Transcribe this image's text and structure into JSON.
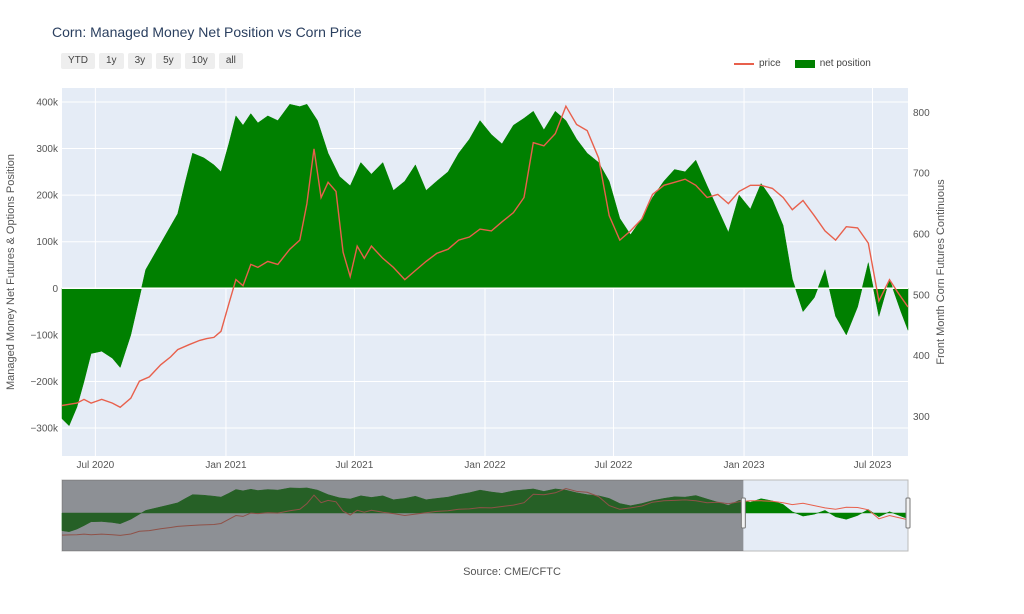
{
  "title": "Corn: Managed Money Net Position vs Corn Price",
  "range_buttons": [
    "YTD",
    "1y",
    "3y",
    "5y",
    "10y",
    "all"
  ],
  "legend": {
    "price": "price",
    "net": "net position"
  },
  "source": "Source: CME/CFTC",
  "colors": {
    "price": "#E8604C",
    "net": "#008000",
    "plot_bg": "#E5ECF6",
    "grid": "#ffffff"
  },
  "chart_data": {
    "type": "area",
    "title": "Corn: Managed Money Net Position vs Corn Price",
    "xlabel": "",
    "ylabel": "Managed Money Net Futures & Options Position",
    "y2label": "Front Month Corn Futures Continuous",
    "xlim": [
      "2020-05-15",
      "2023-08-20"
    ],
    "ylim": [
      -360000,
      430000
    ],
    "y2lim": [
      235,
      840
    ],
    "x_ticks": [
      "Jul 2020",
      "Jan 2021",
      "Jul 2021",
      "Jan 2022",
      "Jul 2022",
      "Jan 2023",
      "Jul 2023"
    ],
    "y_ticks": [
      "400k",
      "300k",
      "200k",
      "100k",
      "0",
      "−100k",
      "−200k",
      "−300k"
    ],
    "y2_ticks": [
      "800",
      "700",
      "600",
      "500",
      "400",
      "300"
    ],
    "legend_position": "top-right",
    "grid": true,
    "series": [
      {
        "name": "net position",
        "axis": "y",
        "points": [
          [
            "2020-05-15",
            -280000
          ],
          [
            "2020-05-25",
            -295000
          ],
          [
            "2020-06-05",
            -255000
          ],
          [
            "2020-06-15",
            -200000
          ],
          [
            "2020-06-25",
            -140000
          ],
          [
            "2020-07-10",
            -135000
          ],
          [
            "2020-07-25",
            -150000
          ],
          [
            "2020-08-05",
            -170000
          ],
          [
            "2020-08-20",
            -100000
          ],
          [
            "2020-09-01",
            -20000
          ],
          [
            "2020-09-10",
            40000
          ],
          [
            "2020-09-25",
            80000
          ],
          [
            "2020-10-10",
            120000
          ],
          [
            "2020-10-25",
            160000
          ],
          [
            "2020-11-05",
            230000
          ],
          [
            "2020-11-15",
            290000
          ],
          [
            "2020-12-01",
            280000
          ],
          [
            "2020-12-15",
            265000
          ],
          [
            "2020-12-25",
            250000
          ],
          [
            "2021-01-05",
            310000
          ],
          [
            "2021-01-15",
            370000
          ],
          [
            "2021-01-25",
            350000
          ],
          [
            "2021-02-05",
            375000
          ],
          [
            "2021-02-15",
            355000
          ],
          [
            "2021-03-01",
            370000
          ],
          [
            "2021-03-15",
            360000
          ],
          [
            "2021-04-01",
            395000
          ],
          [
            "2021-04-15",
            390000
          ],
          [
            "2021-04-25",
            395000
          ],
          [
            "2021-05-10",
            360000
          ],
          [
            "2021-05-25",
            290000
          ],
          [
            "2021-06-10",
            240000
          ],
          [
            "2021-06-25",
            220000
          ],
          [
            "2021-07-10",
            270000
          ],
          [
            "2021-07-25",
            245000
          ],
          [
            "2021-08-10",
            270000
          ],
          [
            "2021-08-25",
            210000
          ],
          [
            "2021-09-10",
            230000
          ],
          [
            "2021-09-25",
            265000
          ],
          [
            "2021-10-10",
            210000
          ],
          [
            "2021-10-25",
            230000
          ],
          [
            "2021-11-10",
            250000
          ],
          [
            "2021-11-25",
            290000
          ],
          [
            "2021-12-10",
            320000
          ],
          [
            "2021-12-25",
            360000
          ],
          [
            "2022-01-10",
            330000
          ],
          [
            "2022-01-25",
            310000
          ],
          [
            "2022-02-10",
            350000
          ],
          [
            "2022-02-25",
            365000
          ],
          [
            "2022-03-10",
            380000
          ],
          [
            "2022-03-25",
            340000
          ],
          [
            "2022-04-10",
            380000
          ],
          [
            "2022-04-25",
            360000
          ],
          [
            "2022-05-10",
            320000
          ],
          [
            "2022-05-25",
            290000
          ],
          [
            "2022-06-10",
            270000
          ],
          [
            "2022-06-25",
            230000
          ],
          [
            "2022-07-10",
            150000
          ],
          [
            "2022-07-25",
            115000
          ],
          [
            "2022-08-10",
            150000
          ],
          [
            "2022-08-25",
            195000
          ],
          [
            "2022-09-10",
            230000
          ],
          [
            "2022-09-25",
            255000
          ],
          [
            "2022-10-10",
            250000
          ],
          [
            "2022-10-25",
            275000
          ],
          [
            "2022-11-10",
            220000
          ],
          [
            "2022-11-25",
            170000
          ],
          [
            "2022-12-10",
            120000
          ],
          [
            "2022-12-25",
            200000
          ],
          [
            "2023-01-10",
            170000
          ],
          [
            "2023-01-25",
            225000
          ],
          [
            "2023-02-10",
            190000
          ],
          [
            "2023-02-25",
            135000
          ],
          [
            "2023-03-10",
            20000
          ],
          [
            "2023-03-25",
            -50000
          ],
          [
            "2023-04-10",
            -20000
          ],
          [
            "2023-04-25",
            40000
          ],
          [
            "2023-05-10",
            -60000
          ],
          [
            "2023-05-25",
            -100000
          ],
          [
            "2023-06-10",
            -40000
          ],
          [
            "2023-06-25",
            55000
          ],
          [
            "2023-07-10",
            -60000
          ],
          [
            "2023-07-25",
            20000
          ],
          [
            "2023-08-10",
            -50000
          ],
          [
            "2023-08-20",
            -90000
          ]
        ]
      },
      {
        "name": "price",
        "axis": "y2",
        "points": [
          [
            "2020-05-15",
            318
          ],
          [
            "2020-05-25",
            320
          ],
          [
            "2020-06-05",
            322
          ],
          [
            "2020-06-15",
            328
          ],
          [
            "2020-06-25",
            322
          ],
          [
            "2020-07-10",
            328
          ],
          [
            "2020-07-25",
            322
          ],
          [
            "2020-08-05",
            315
          ],
          [
            "2020-08-20",
            330
          ],
          [
            "2020-09-01",
            358
          ],
          [
            "2020-09-15",
            365
          ],
          [
            "2020-10-01",
            385
          ],
          [
            "2020-10-15",
            398
          ],
          [
            "2020-10-25",
            410
          ],
          [
            "2020-11-10",
            418
          ],
          [
            "2020-11-25",
            425
          ],
          [
            "2020-12-05",
            428
          ],
          [
            "2020-12-15",
            430
          ],
          [
            "2020-12-25",
            440
          ],
          [
            "2021-01-05",
            485
          ],
          [
            "2021-01-15",
            525
          ],
          [
            "2021-01-25",
            515
          ],
          [
            "2021-02-05",
            550
          ],
          [
            "2021-02-15",
            545
          ],
          [
            "2021-03-01",
            555
          ],
          [
            "2021-03-15",
            550
          ],
          [
            "2021-04-01",
            575
          ],
          [
            "2021-04-15",
            590
          ],
          [
            "2021-04-25",
            650
          ],
          [
            "2021-05-05",
            740
          ],
          [
            "2021-05-15",
            660
          ],
          [
            "2021-05-25",
            685
          ],
          [
            "2021-06-05",
            670
          ],
          [
            "2021-06-15",
            570
          ],
          [
            "2021-06-25",
            530
          ],
          [
            "2021-07-05",
            580
          ],
          [
            "2021-07-15",
            560
          ],
          [
            "2021-07-25",
            580
          ],
          [
            "2021-08-10",
            560
          ],
          [
            "2021-08-25",
            545
          ],
          [
            "2021-09-10",
            525
          ],
          [
            "2021-09-25",
            540
          ],
          [
            "2021-10-10",
            555
          ],
          [
            "2021-10-25",
            568
          ],
          [
            "2021-11-10",
            575
          ],
          [
            "2021-11-25",
            590
          ],
          [
            "2021-12-10",
            595
          ],
          [
            "2021-12-25",
            608
          ],
          [
            "2022-01-10",
            605
          ],
          [
            "2022-01-25",
            620
          ],
          [
            "2022-02-10",
            635
          ],
          [
            "2022-02-25",
            660
          ],
          [
            "2022-03-10",
            750
          ],
          [
            "2022-03-25",
            745
          ],
          [
            "2022-04-10",
            765
          ],
          [
            "2022-04-25",
            810
          ],
          [
            "2022-05-10",
            780
          ],
          [
            "2022-05-25",
            770
          ],
          [
            "2022-06-10",
            725
          ],
          [
            "2022-06-25",
            630
          ],
          [
            "2022-07-10",
            590
          ],
          [
            "2022-07-25",
            605
          ],
          [
            "2022-08-10",
            625
          ],
          [
            "2022-08-25",
            665
          ],
          [
            "2022-09-10",
            680
          ],
          [
            "2022-09-25",
            685
          ],
          [
            "2022-10-10",
            690
          ],
          [
            "2022-10-25",
            680
          ],
          [
            "2022-11-10",
            660
          ],
          [
            "2022-11-25",
            665
          ],
          [
            "2022-12-10",
            650
          ],
          [
            "2022-12-25",
            670
          ],
          [
            "2023-01-10",
            680
          ],
          [
            "2023-01-25",
            680
          ],
          [
            "2023-02-10",
            675
          ],
          [
            "2023-02-25",
            660
          ],
          [
            "2023-03-10",
            640
          ],
          [
            "2023-03-25",
            655
          ],
          [
            "2023-04-10",
            630
          ],
          [
            "2023-04-25",
            605
          ],
          [
            "2023-05-10",
            590
          ],
          [
            "2023-05-25",
            612
          ],
          [
            "2023-06-10",
            610
          ],
          [
            "2023-06-25",
            585
          ],
          [
            "2023-07-10",
            490
          ],
          [
            "2023-07-25",
            525
          ],
          [
            "2023-08-05",
            505
          ],
          [
            "2023-08-20",
            480
          ]
        ]
      }
    ]
  }
}
